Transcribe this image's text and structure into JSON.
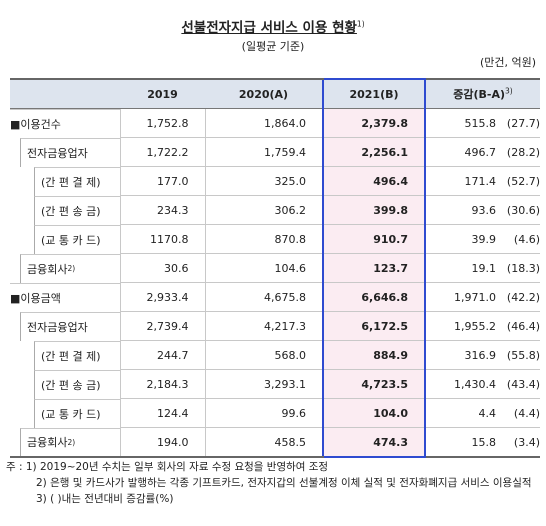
{
  "title": "선불전자지급 서비스 이용 현황",
  "title_sup": "1)",
  "subtitle": "(일평균 기준)",
  "unit": "(만건, 억원)",
  "table": {
    "header": [
      "2019",
      "2020(A)",
      "2021(B)",
      "증감(B-A)"
    ],
    "header_sup": "3)",
    "rows": [
      {
        "label": "■이용건수",
        "level": 1,
        "cells": [
          "1,752.8",
          "1,864.0",
          "2,379.8"
        ],
        "diff": "515.8",
        "rate": "(27.7)"
      },
      {
        "label": "전자금융업자",
        "level": 2,
        "cells": [
          "1,722.2",
          "1,759.4",
          "2,256.1"
        ],
        "diff": "496.7",
        "rate": "(28.2)"
      },
      {
        "label": "(간 편 결 제)",
        "level": 3,
        "cells": [
          "177.0",
          "325.0",
          "496.4"
        ],
        "diff": "171.4",
        "rate": "(52.7)"
      },
      {
        "label": "(간 편 송 금)",
        "level": 3,
        "cells": [
          "234.3",
          "306.2",
          "399.8"
        ],
        "diff": "93.6",
        "rate": "(30.6)"
      },
      {
        "label": "(교 통 카 드)",
        "level": 3,
        "cells": [
          "1170.8",
          "870.8",
          "910.7"
        ],
        "diff": "39.9",
        "rate": "(4.6)"
      },
      {
        "label": "금융회사",
        "sup": "2)",
        "level": 2,
        "cells": [
          "30.6",
          "104.6",
          "123.7"
        ],
        "diff": "19.1",
        "rate": "(18.3)"
      },
      {
        "label": "■이용금액",
        "level": 1,
        "cells": [
          "2,933.4",
          "4,675.8",
          "6,646.8"
        ],
        "diff": "1,971.0",
        "rate": "(42.2)"
      },
      {
        "label": "전자금융업자",
        "level": 2,
        "cells": [
          "2,739.4",
          "4,217.3",
          "6,172.5"
        ],
        "diff": "1,955.2",
        "rate": "(46.4)"
      },
      {
        "label": "(간 편 결 제)",
        "level": 3,
        "cells": [
          "244.7",
          "568.0",
          "884.9"
        ],
        "diff": "316.9",
        "rate": "(55.8)"
      },
      {
        "label": "(간 편 송 금)",
        "level": 3,
        "cells": [
          "2,184.3",
          "3,293.1",
          "4,723.5"
        ],
        "diff": "1,430.4",
        "rate": "(43.4)"
      },
      {
        "label": "(교 통 카 드)",
        "level": 3,
        "cells": [
          "124.4",
          "99.6",
          "104.0"
        ],
        "diff": "4.4",
        "rate": "(4.4)"
      },
      {
        "label": "금융회사",
        "sup": "2)",
        "level": 2,
        "cells": [
          "194.0",
          "458.5",
          "474.3"
        ],
        "diff": "15.8",
        "rate": "(3.4)"
      }
    ]
  },
  "notes": [
    "주 : 1) 2019~20년 수치는 일부 회사의 자료 수정 요청을 반영하여 조정",
    "2) 은행 및 카드사가 발행하는 각종 기프트카드, 전자지갑의 선불계정 이체 실적 및 전자화폐지급 서비스 이용실적",
    "3) ( )내는 전년대비 증감률(%)"
  ]
}
